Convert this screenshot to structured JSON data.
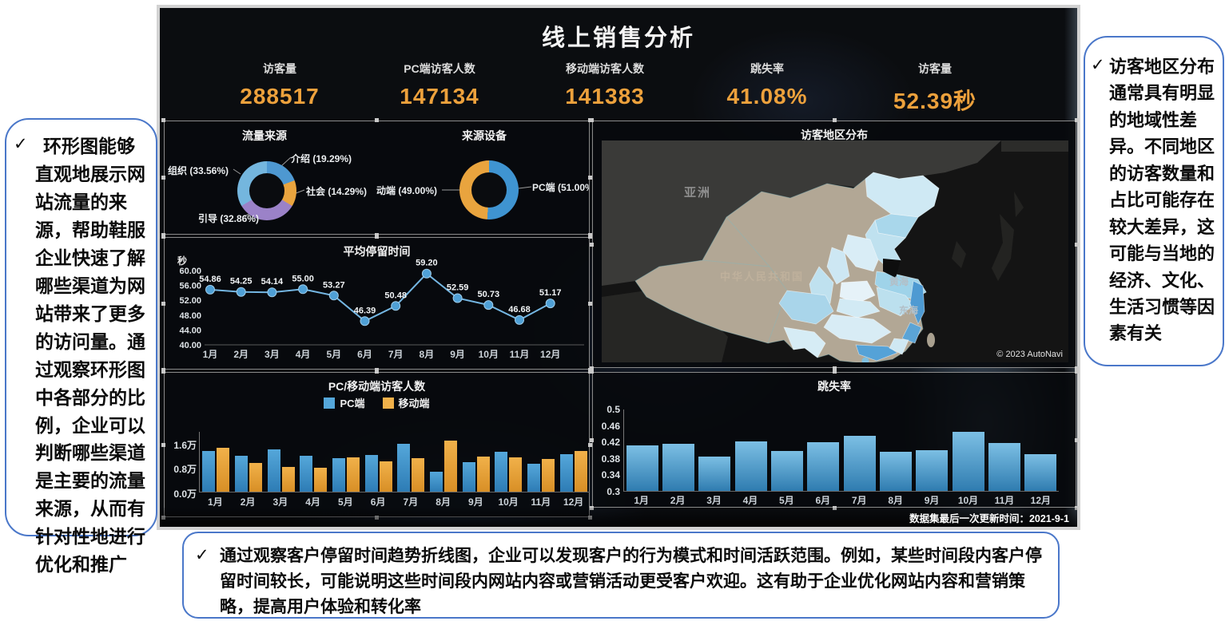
{
  "dashboard": {
    "title": "线上销售分析",
    "kpis": [
      {
        "label": "访客量",
        "value": "288517"
      },
      {
        "label": "PC端访客人数",
        "value": "147134"
      },
      {
        "label": "移动端访客人数",
        "value": "141383"
      },
      {
        "label": "跳失率",
        "value": "41.08%"
      },
      {
        "label": "访客量",
        "value": "52.39秒"
      }
    ],
    "update_note": "数据集最后一次更新时间：2021-9-1"
  },
  "chart_data": [
    {
      "id": "traffic-source",
      "type": "pie",
      "title": "流量来源",
      "segments": [
        {
          "label": "介绍 (19.29%)",
          "value": 19.29,
          "color": "#4e98d1"
        },
        {
          "label": "社会 (14.29%)",
          "value": 14.29,
          "color": "#e9a43e"
        },
        {
          "label": "引导 (32.86%)",
          "value": 32.86,
          "color": "#9b82c8"
        },
        {
          "label": "组织 (33.56%)",
          "value": 33.56,
          "color": "#74b6de"
        }
      ]
    },
    {
      "id": "source-device",
      "type": "pie",
      "title": "来源设备",
      "segments": [
        {
          "label": "PC端 (51.00%",
          "value": 51.0,
          "color": "#3f94d1"
        },
        {
          "label": "动端 (49.00%)",
          "value": 49.0,
          "color": "#e9a43e"
        }
      ]
    },
    {
      "id": "avg-stay-time",
      "type": "line",
      "title": "平均停留时间",
      "unit": "秒",
      "categories": [
        "1月",
        "2月",
        "3月",
        "4月",
        "5月",
        "6月",
        "7月",
        "8月",
        "9月",
        "10月",
        "11月",
        "12月"
      ],
      "values": [
        54.86,
        54.25,
        54.14,
        55.0,
        53.27,
        46.39,
        50.48,
        59.2,
        52.59,
        50.73,
        46.68,
        51.17
      ],
      "ylim": [
        40,
        60
      ],
      "yticks": [
        {
          "label": "60.00",
          "v": 60
        },
        {
          "label": "56.00",
          "v": 56
        },
        {
          "label": "52.00",
          "v": 52
        },
        {
          "label": "48.00",
          "v": 48
        },
        {
          "label": "44.00",
          "v": 44
        },
        {
          "label": "40.00",
          "v": 40
        }
      ]
    },
    {
      "id": "pc-mobile-visitors",
      "type": "bar",
      "title": "PC/移动端访客人数",
      "unit": "万",
      "categories": [
        "1月",
        "2月",
        "3月",
        "4月",
        "5月",
        "6月",
        "7月",
        "8月",
        "9月",
        "10月",
        "11月",
        "12月"
      ],
      "series": [
        {
          "name": "PC端",
          "color": "#55a7da",
          "color2": "#2d7cb5",
          "values": [
            1.34,
            1.17,
            1.38,
            1.17,
            1.1,
            1.2,
            1.57,
            0.66,
            0.97,
            1.3,
            0.92,
            1.23
          ]
        },
        {
          "name": "移动端",
          "color": "#f1b14a",
          "color2": "#d88f26",
          "values": [
            1.44,
            0.93,
            0.81,
            0.78,
            1.12,
            0.99,
            1.1,
            1.67,
            1.14,
            1.12,
            1.06,
            1.33
          ]
        }
      ],
      "ylim": [
        0,
        1.9
      ],
      "yticks": [
        {
          "label": "1.6万",
          "v": 1.6
        },
        {
          "label": "0.8万",
          "v": 0.8
        },
        {
          "label": "0.0万",
          "v": 0
        }
      ]
    },
    {
      "id": "bounce-rate",
      "type": "bar",
      "title": "跳失率",
      "categories": [
        "1月",
        "2月",
        "3月",
        "4月",
        "5月",
        "6月",
        "7月",
        "8月",
        "9月",
        "10月",
        "11月",
        "12月"
      ],
      "values": [
        0.41,
        0.415,
        0.383,
        0.42,
        0.397,
        0.418,
        0.435,
        0.395,
        0.4,
        0.443,
        0.417,
        0.39
      ],
      "color": "#7cbfe4",
      "color2": "#2f7cb0",
      "ylim": [
        0.3,
        0.5
      ],
      "yticks": [
        {
          "label": "0.5",
          "v": 0.5
        },
        {
          "label": "0.46",
          "v": 0.46
        },
        {
          "label": "0.42",
          "v": 0.42
        },
        {
          "label": "0.38",
          "v": 0.38
        },
        {
          "label": "0.34",
          "v": 0.34
        },
        {
          "label": "0.3",
          "v": 0.3
        }
      ]
    },
    {
      "id": "visitor-region-map",
      "type": "map",
      "title": "访客地区分布",
      "labels": {
        "continent": "亚洲",
        "country": "中华人民共和国",
        "yellow_sea": "黄海",
        "east_sea": "东海"
      },
      "copyright": "© 2023 AutoNavi"
    }
  ],
  "callouts": {
    "check": "✓",
    "left": "环形图能够直观地展示网站流量的来源，帮助鞋服企业快速了解哪些渠道为网站带来了更多的访问量。通过观察环形图中各部分的比例，企业可以判断哪些渠道是主要的流量来源，从而有针对性地进行优化和推广",
    "right": "访客地区分布通常具有明显的地域性差异。不同地区的访客数量和占比可能存在较大差异，这可能与当地的经济、文化、生活习惯等因素有关",
    "bottom": "通过观察客户停留时间趋势折线图，企业可以发现客户的行为模式和时间活跃范围。例如，某些时间段内客户停留时间较长，可能说明这些时间段内网站内容或营销活动更受客户欢迎。这有助于企业优化网站内容和营销策略，提高用户体验和转化率"
  },
  "colors": {
    "accent_orange": "#eda13c",
    "callout_border": "#4a77c9",
    "bar_blue": "#3e93cc",
    "bar_orange": "#e9a63e",
    "line_blue": "#74b6e2"
  }
}
